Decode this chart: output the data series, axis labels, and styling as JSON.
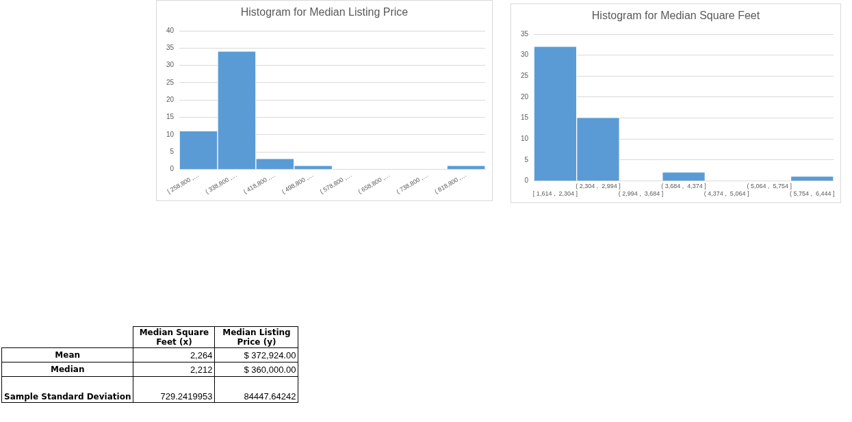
{
  "chart_data": [
    {
      "type": "bar",
      "title": "Histogram for Median Listing Price",
      "categories": [
        "[ 258,800 ,…",
        "( 338,800 ,…",
        "( 418,800 ,…",
        "( 498,800 ,…",
        "( 578,800 ,…",
        "( 658,800 ,…",
        "( 738,800 ,…",
        "( 818,800 ,…"
      ],
      "values": [
        11,
        34,
        3,
        1,
        0,
        0,
        0,
        1
      ],
      "color": "#5b9bd5",
      "ylim": [
        0,
        40
      ],
      "yticks": [
        0,
        5,
        10,
        15,
        20,
        25,
        30,
        35,
        40
      ],
      "grid": "y"
    },
    {
      "type": "bar",
      "title": "Histogram for Median Square Feet",
      "categories": [
        "[ 1,614 ,  2,304 ]",
        "( 2,304 ,  2,994 ]",
        "( 2,994 ,  3,684 ]",
        "( 3,684 ,  4,374 ]",
        "( 4,374 ,  5,064 ]",
        "( 5,064 ,  5,754 ]",
        "( 5,754 ,  6,444 ]"
      ],
      "values": [
        32,
        15,
        0,
        2,
        0,
        0,
        1
      ],
      "color": "#5b9bd5",
      "ylim": [
        0,
        35
      ],
      "yticks": [
        0,
        5,
        10,
        15,
        20,
        25,
        30,
        35
      ],
      "grid": "y"
    },
    {
      "type": "other",
      "annotations": [
        "Median Square Feet (x)",
        "Median Listing Price (y)",
        "Mean",
        "2,264",
        "$ 372,924.00",
        "Median",
        "2,212",
        "$ 360,000.00",
        "Sample Standard Deviation",
        "729.2419953",
        "84447.64242"
      ]
    }
  ]
}
